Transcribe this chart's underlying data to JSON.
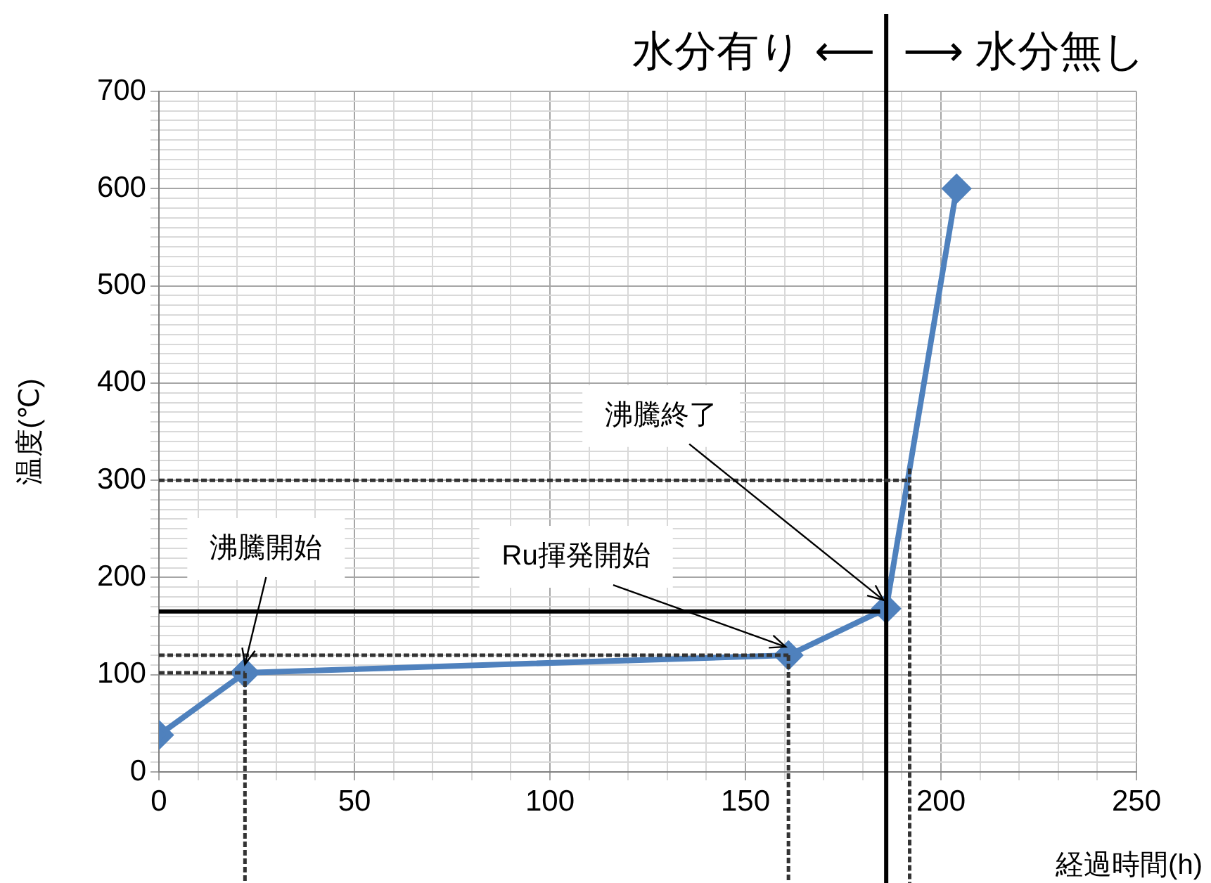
{
  "chart_data": {
    "type": "line",
    "xlabel": "経過時間(h)",
    "ylabel": "温度(℃)",
    "x": [
      0,
      22,
      161,
      186,
      204
    ],
    "series": [
      {
        "color": "#4f81bd",
        "values": [
          38,
          102,
          120,
          168,
          600
        ]
      }
    ],
    "marker": "diamond",
    "line_style": "solid",
    "grid": true,
    "legend": false,
    "xlim": [
      0,
      250
    ],
    "ylim": [
      0,
      700
    ],
    "xticks": [
      0,
      {
        "value": 10,
        "label": null
      },
      {
        "value": 20,
        "label": null
      },
      {
        "value": 30,
        "label": null
      },
      {
        "value": 40,
        "label": null
      },
      50,
      {
        "value": 60,
        "label": null
      },
      {
        "value": 70,
        "label": null
      },
      {
        "value": 80,
        "label": null
      },
      {
        "value": 90,
        "label": null
      },
      100,
      {
        "value": 110,
        "label": null
      },
      {
        "value": 120,
        "label": null
      },
      {
        "value": 130,
        "label": null
      },
      {
        "value": 140,
        "label": null
      },
      150,
      {
        "value": 160,
        "label": null
      },
      {
        "value": 170,
        "label": null
      },
      {
        "value": 180,
        "label": null
      },
      {
        "value": 190,
        "label": null
      },
      200,
      {
        "value": 210,
        "label": null
      },
      {
        "value": 220,
        "label": null
      },
      {
        "value": 230,
        "label": null
      },
      {
        "value": 240,
        "label": null
      },
      250
    ],
    "yticks": [
      0,
      {
        "value": 10,
        "label": null
      },
      {
        "value": 20,
        "label": null
      },
      {
        "value": 30,
        "label": null
      },
      {
        "value": 40,
        "label": null
      },
      {
        "value": 50,
        "label": null
      },
      {
        "value": 60,
        "label": null
      },
      {
        "value": 70,
        "label": null
      },
      {
        "value": 80,
        "label": null
      },
      {
        "value": 90,
        "label": null
      },
      100,
      {
        "value": 110,
        "label": null
      },
      {
        "value": 120,
        "label": null
      },
      {
        "value": 130,
        "label": null
      },
      {
        "value": 140,
        "label": null
      },
      {
        "value": 150,
        "label": null
      },
      {
        "value": 160,
        "label": null
      },
      {
        "value": 170,
        "label": null
      },
      {
        "value": 180,
        "label": null
      },
      {
        "value": 190,
        "label": null
      },
      200,
      {
        "value": 210,
        "label": null
      },
      {
        "value": 220,
        "label": null
      },
      {
        "value": 230,
        "label": null
      },
      {
        "value": 240,
        "label": null
      },
      {
        "value": 250,
        "label": null
      },
      {
        "value": 260,
        "label": null
      },
      {
        "value": 270,
        "label": null
      },
      {
        "value": 280,
        "label": null
      },
      {
        "value": 290,
        "label": null
      },
      300,
      {
        "value": 310,
        "label": null
      },
      {
        "value": 320,
        "label": null
      },
      {
        "value": 330,
        "label": null
      },
      {
        "value": 340,
        "label": null
      },
      {
        "value": 350,
        "label": null
      },
      {
        "value": 360,
        "label": null
      },
      {
        "value": 370,
        "label": null
      },
      {
        "value": 380,
        "label": null
      },
      {
        "value": 390,
        "label": null
      },
      400,
      {
        "value": 410,
        "label": null
      },
      {
        "value": 420,
        "label": null
      },
      {
        "value": 430,
        "label": null
      },
      {
        "value": 440,
        "label": null
      },
      {
        "value": 450,
        "label": null
      },
      {
        "value": 460,
        "label": null
      },
      {
        "value": 470,
        "label": null
      },
      {
        "value": 480,
        "label": null
      },
      {
        "value": 490,
        "label": null
      },
      500,
      {
        "value": 510,
        "label": null
      },
      {
        "value": 520,
        "label": null
      },
      {
        "value": 530,
        "label": null
      },
      {
        "value": 540,
        "label": null
      },
      {
        "value": 550,
        "label": null
      },
      {
        "value": 560,
        "label": null
      },
      {
        "value": 570,
        "label": null
      },
      {
        "value": 580,
        "label": null
      },
      {
        "value": 590,
        "label": null
      },
      600,
      {
        "value": 610,
        "label": null
      },
      {
        "value": 620,
        "label": null
      },
      {
        "value": 630,
        "label": null
      },
      {
        "value": 640,
        "label": null
      },
      {
        "value": 650,
        "label": null
      },
      {
        "value": 660,
        "label": null
      },
      {
        "value": 670,
        "label": null
      },
      {
        "value": 680,
        "label": null
      },
      {
        "value": 690,
        "label": null
      },
      700
    ],
    "ref_lines": [
      {
        "axis": "x",
        "value": 186,
        "color": "#000000",
        "line_style": "solid"
      },
      {
        "axis": "y",
        "value": 165,
        "color": "#000000",
        "line_style": "solid"
      },
      {
        "axis": "y",
        "value": 300,
        "color": "#333333",
        "line_style": "dotted"
      },
      {
        "axis": "y",
        "value": 120,
        "color": "#333333",
        "line_style": "dotted"
      },
      {
        "axis": "y",
        "value": 102,
        "color": "#333333",
        "line_style": "dotted"
      },
      {
        "axis": "x",
        "value": 22,
        "color": "#333333",
        "line_style": "dotted"
      },
      {
        "axis": "x",
        "value": 161,
        "color": "#333333",
        "line_style": "dotted"
      },
      {
        "axis": "x",
        "value": 192,
        "color": "#333333",
        "line_style": "dotted"
      }
    ],
    "annotations": [
      "水分有り ⟵",
      "⟶ 水分無し",
      {
        "text": "沸騰開始",
        "x": 22,
        "y": 102
      },
      {
        "text": "Ru揮発開始",
        "x": 161,
        "y": 120
      },
      {
        "text": "沸騰終了",
        "x": 186,
        "y": 168
      }
    ]
  }
}
